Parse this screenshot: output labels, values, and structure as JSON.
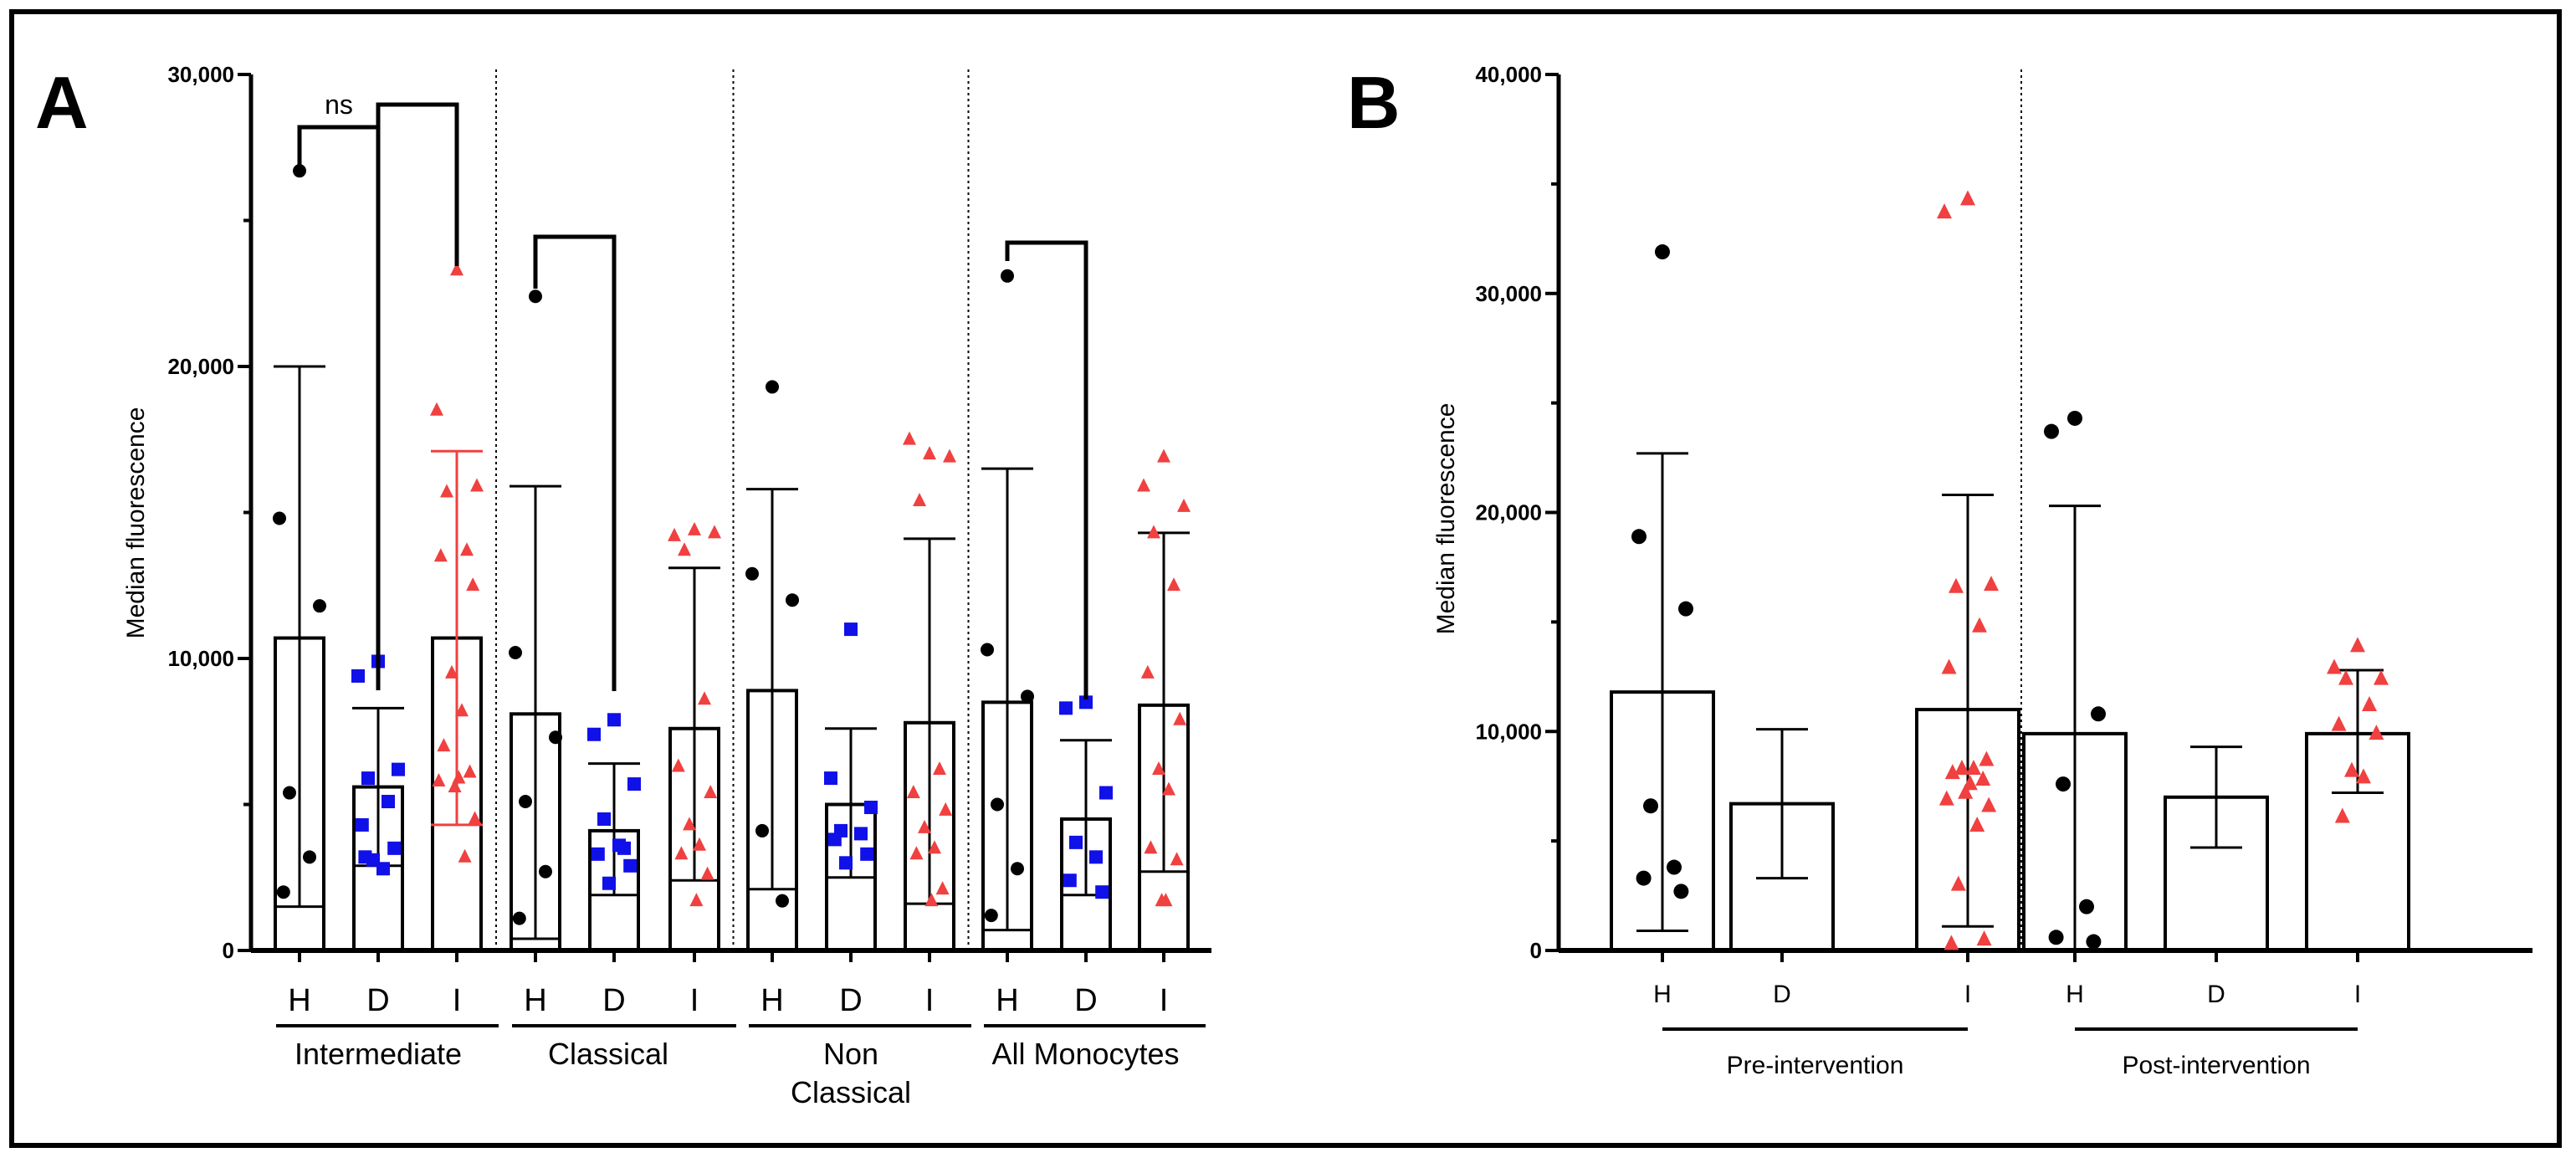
{
  "chart_data": [
    {
      "panel": "A",
      "type": "bar",
      "ylabel": "Median fluorescence",
      "ylim": [
        0,
        30000
      ],
      "yticks": [
        0,
        10000,
        20000,
        30000
      ],
      "ytick_labels": [
        "0",
        "10,000",
        "20,000",
        "30,000"
      ],
      "series_colors": {
        "H": "#000000",
        "D": "#1010e8",
        "I": "#f04040"
      },
      "groups": [
        {
          "name": "Intermediate",
          "bars": [
            {
              "cat": "H",
              "mean": 10700,
              "sd_low": 1500,
              "sd_high": 20000,
              "points": [
                26700,
                14800,
                11800,
                5400,
                3200,
                2000
              ]
            },
            {
              "cat": "D",
              "mean": 5600,
              "sd_low": 2900,
              "sd_high": 8300,
              "points": [
                9900,
                9400,
                6200,
                5900,
                5100,
                4300,
                3500,
                3100,
                2800,
                3200
              ]
            },
            {
              "cat": "I",
              "mean": 10700,
              "sd_low": 4300,
              "sd_high": 17100,
              "points": [
                23300,
                18500,
                15900,
                15700,
                13700,
                13500,
                12500,
                9500,
                8200,
                7000,
                6100,
                5900,
                5600,
                5800,
                4500,
                3200
              ]
            }
          ]
        },
        {
          "name": "Classical",
          "bars": [
            {
              "cat": "H",
              "mean": 8100,
              "sd_low": 400,
              "sd_high": 15900,
              "points": [
                22400,
                10200,
                7300,
                5100,
                2700,
                1100
              ]
            },
            {
              "cat": "D",
              "mean": 4100,
              "sd_low": 1900,
              "sd_high": 6400,
              "points": [
                7900,
                7400,
                5700,
                4500,
                3500,
                3300,
                2900,
                2300,
                3600
              ]
            },
            {
              "cat": "I",
              "mean": 7600,
              "sd_low": 2400,
              "sd_high": 13100,
              "points": [
                14400,
                14200,
                14300,
                13700,
                8600,
                6300,
                5400,
                4300,
                3600,
                3300,
                2600,
                1700
              ]
            }
          ]
        },
        {
          "name": "Non Classical",
          "bars": [
            {
              "cat": "H",
              "mean": 8900,
              "sd_low": 2100,
              "sd_high": 15800,
              "points": [
                19300,
                12900,
                12000,
                4100,
                1700
              ]
            },
            {
              "cat": "D",
              "mean": 5000,
              "sd_low": 2500,
              "sd_high": 7600,
              "points": [
                11000,
                5900,
                4900,
                4100,
                4000,
                3800,
                3300,
                3000
              ]
            },
            {
              "cat": "I",
              "mean": 7800,
              "sd_low": 1600,
              "sd_high": 14100,
              "points": [
                17000,
                17500,
                16900,
                15400,
                6200,
                5400,
                4800,
                4200,
                3500,
                3300,
                2100,
                1700
              ]
            }
          ]
        },
        {
          "name": "All Monocytes",
          "bars": [
            {
              "cat": "H",
              "mean": 8500,
              "sd_low": 700,
              "sd_high": 16500,
              "points": [
                23100,
                10300,
                8700,
                5000,
                2800,
                1200
              ]
            },
            {
              "cat": "D",
              "mean": 4500,
              "sd_low": 1900,
              "sd_high": 7200,
              "points": [
                8500,
                8300,
                5400,
                3700,
                3200,
                2400,
                2000
              ]
            },
            {
              "cat": "I",
              "mean": 8400,
              "sd_low": 2700,
              "sd_high": 14300,
              "points": [
                16900,
                15900,
                15200,
                14300,
                12500,
                9500,
                7900,
                6200,
                5500,
                3500,
                3100,
                1700,
                1700
              ]
            }
          ]
        }
      ],
      "annotations": [
        {
          "type": "bracket",
          "group": 0,
          "from": "H",
          "to": "D",
          "label": "ns"
        },
        {
          "type": "bracket",
          "group": 0,
          "from": "D",
          "to": "I",
          "label": ""
        },
        {
          "type": "bracket",
          "group": 1,
          "from": "H",
          "to": "D",
          "label": ""
        },
        {
          "type": "bracket",
          "group": 3,
          "from": "H",
          "to": "D",
          "label": ""
        }
      ]
    },
    {
      "panel": "B",
      "type": "bar",
      "ylabel": "Median fluorescence",
      "ylim": [
        0,
        40000
      ],
      "yticks": [
        0,
        10000,
        20000,
        30000,
        40000
      ],
      "ytick_labels": [
        "0",
        "10,000",
        "20,000",
        "30,000",
        "40,000"
      ],
      "series_colors": {
        "H": "#000000",
        "D": "#1010e8",
        "I": "#f04040"
      },
      "groups": [
        {
          "name": "Pre-intervention",
          "bars": [
            {
              "cat": "H",
              "mean": 11800,
              "sd_low": 900,
              "sd_high": 22700,
              "points": [
                31900,
                18900,
                15600,
                6600,
                3800,
                3300,
                2700
              ]
            },
            {
              "cat": "D",
              "mean": 6700,
              "sd_low": 3300,
              "sd_high": 10100,
              "points": []
            },
            {
              "cat": "I",
              "mean": 11000,
              "sd_low": 1100,
              "sd_high": 20800,
              "points": [
                34300,
                33700,
                16700,
                16600,
                14800,
                12900,
                8700,
                8300,
                8300,
                8100,
                7800,
                7600,
                7200,
                6900,
                6600,
                5700,
                3000,
                500,
                300
              ]
            }
          ]
        },
        {
          "name": "Post-intervention",
          "bars": [
            {
              "cat": "H",
              "mean": 9900,
              "sd_low": 0,
              "sd_high": 20300,
              "points": [
                24300,
                23700,
                10800,
                7600,
                2000,
                600,
                400
              ]
            },
            {
              "cat": "D",
              "mean": 7000,
              "sd_low": 4700,
              "sd_high": 9300,
              "points": []
            },
            {
              "cat": "I",
              "mean": 9900,
              "sd_low": 7200,
              "sd_high": 12800,
              "points": [
                13900,
                12900,
                12400,
                12400,
                11200,
                10300,
                9900,
                8200,
                7900,
                6100
              ]
            }
          ]
        }
      ]
    }
  ],
  "panel_labels": {
    "a": "A",
    "b": "B"
  },
  "brackets": {
    "ns_label": "ns"
  }
}
